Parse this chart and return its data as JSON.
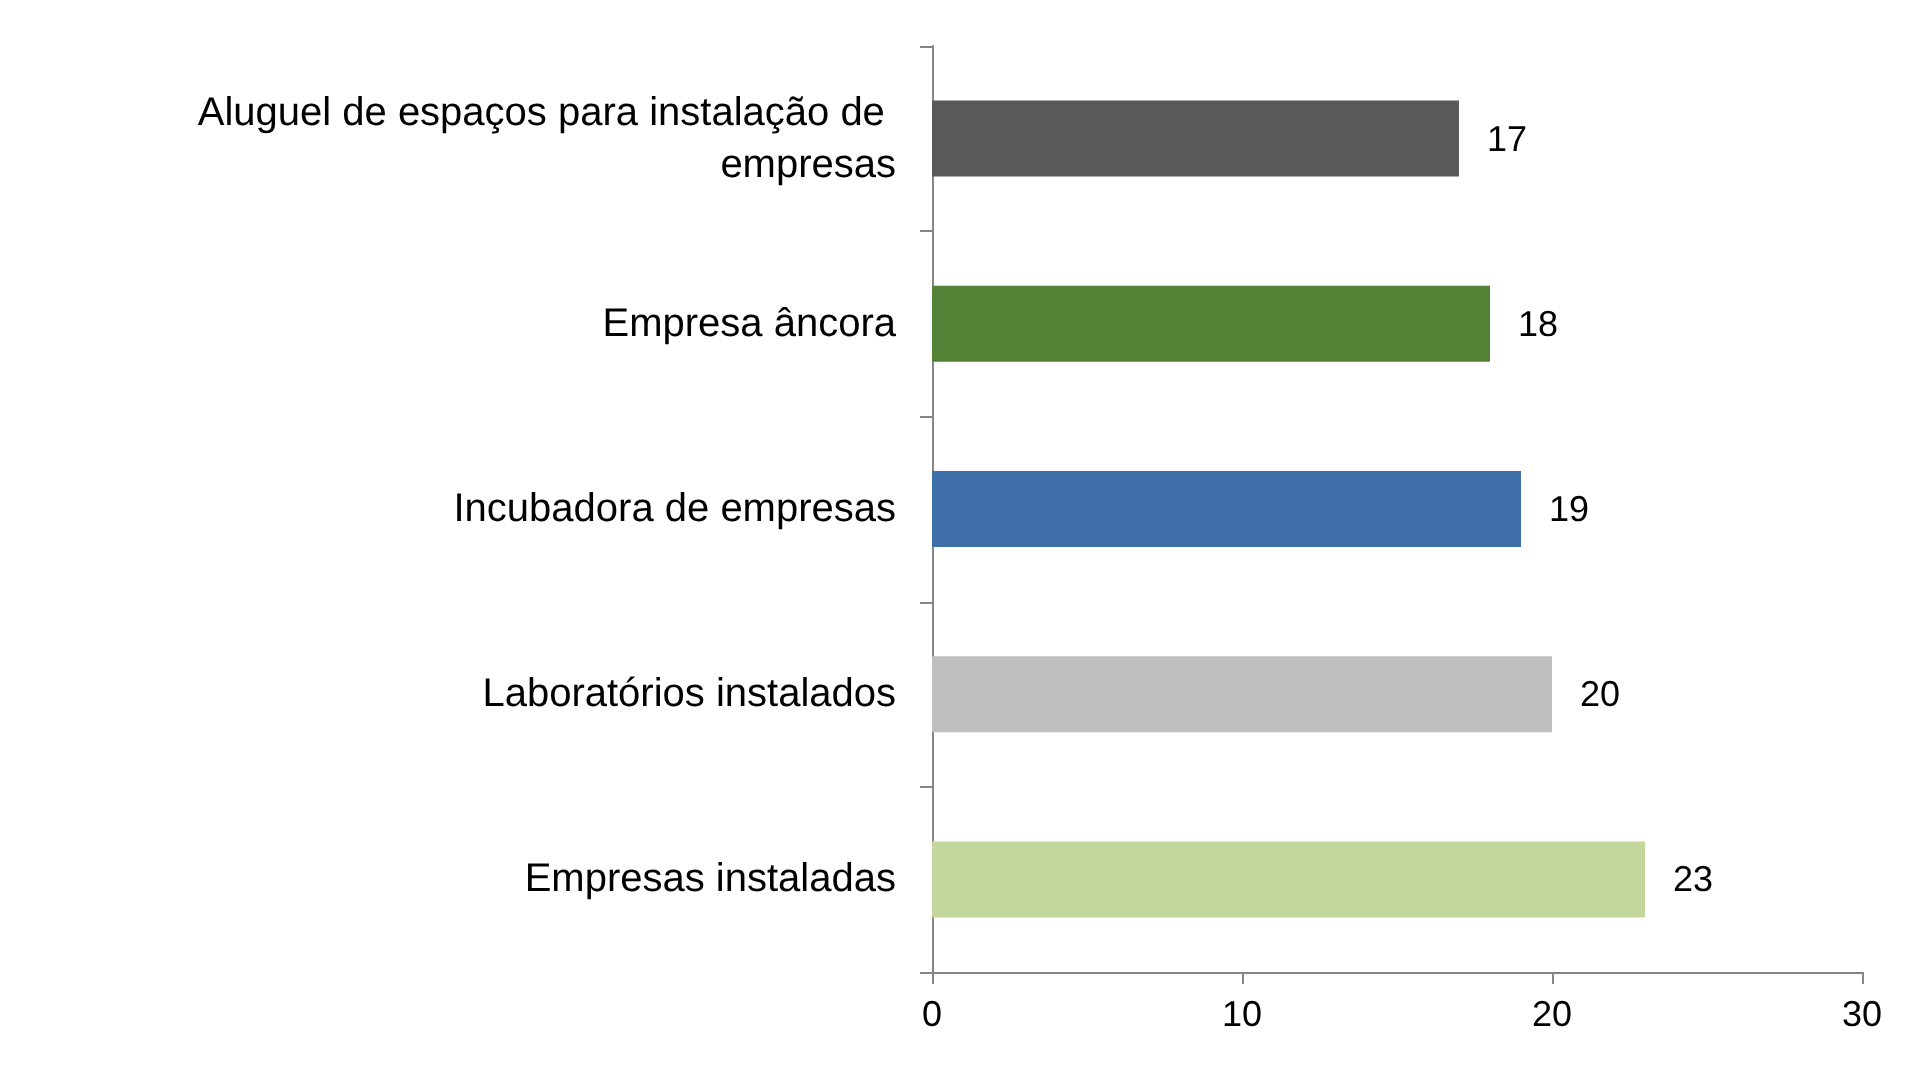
{
  "chart_data": {
    "type": "bar",
    "orientation": "horizontal",
    "categories": [
      "Aluguel de espaços para instalação de empresas",
      "Empresa âncora",
      "Incubadora de empresas",
      "Laboratórios instalados",
      "Empresas instaladas"
    ],
    "values": [
      17,
      18,
      19,
      20,
      23
    ],
    "colors": [
      "#595959",
      "#538135",
      "#3f6fa8",
      "#bfbfbf",
      "#c3d69b"
    ],
    "xlim": [
      0,
      30
    ],
    "xticks": [
      0,
      10,
      20,
      30
    ],
    "grid": false,
    "data_labels": true
  }
}
